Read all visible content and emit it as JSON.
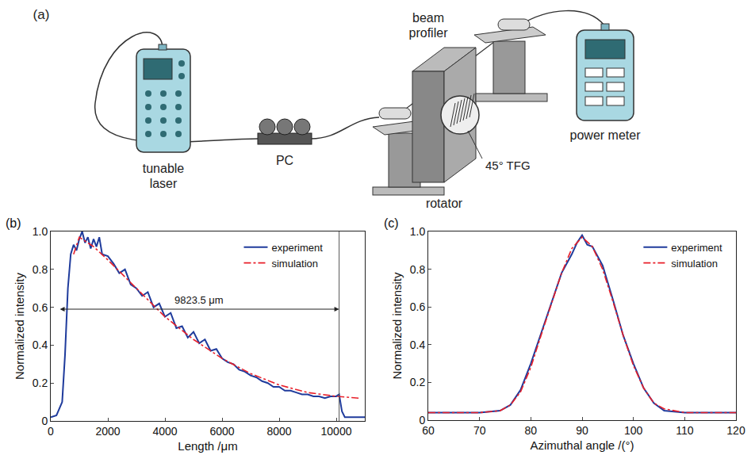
{
  "diagram": {
    "label": "(a)",
    "components": [
      {
        "label": "tunable laser"
      },
      {
        "label": "PC"
      },
      {
        "label": "beam profiler"
      },
      {
        "label": "45° TFG"
      },
      {
        "label": "rotator"
      },
      {
        "label": "power meter"
      }
    ]
  },
  "chart_data": [
    {
      "type": "line",
      "label": "(b)",
      "x_label": "Length /μm",
      "y_label": "Normalized intensity",
      "xlim": [
        0,
        11000
      ],
      "xticks": [
        0,
        2000,
        4000,
        6000,
        8000,
        10000
      ],
      "ylim": [
        0,
        1
      ],
      "yticks": [
        0,
        0.2,
        0.4,
        0.6,
        0.8,
        {
          "value": 1,
          "label": "1.0"
        }
      ],
      "grid": false,
      "legend": "upper right",
      "span": {
        "x0": 277,
        "x1": 10100.5,
        "y": 0.59,
        "label": "9823.5 μm"
      },
      "series": [
        {
          "name": "experiment",
          "color": "#1f3b9c",
          "line_style": "solid",
          "x": [
            0,
            200,
            400,
            500,
            600,
            700,
            800,
            900,
            1000,
            1100,
            1200,
            1300,
            1400,
            1500,
            1600,
            1700,
            1800,
            2000,
            2200,
            2400,
            2600,
            2800,
            3000,
            3200,
            3400,
            3600,
            3800,
            4000,
            4200,
            4400,
            4600,
            4800,
            5000,
            5200,
            5400,
            5600,
            5800,
            6000,
            6200,
            6400,
            6600,
            6800,
            7000,
            7200,
            7400,
            7600,
            7800,
            8000,
            8200,
            8400,
            8600,
            8800,
            9000,
            9200,
            9400,
            9600,
            9800,
            10000,
            10100,
            10200,
            10300,
            10500,
            11000
          ],
          "values": [
            0.02,
            0.03,
            0.1,
            0.35,
            0.7,
            0.88,
            0.93,
            0.9,
            0.96,
            1.0,
            0.94,
            0.97,
            0.91,
            0.96,
            0.92,
            0.97,
            0.88,
            0.87,
            0.83,
            0.78,
            0.8,
            0.72,
            0.7,
            0.66,
            0.68,
            0.6,
            0.62,
            0.55,
            0.57,
            0.49,
            0.5,
            0.44,
            0.47,
            0.41,
            0.43,
            0.37,
            0.38,
            0.33,
            0.31,
            0.3,
            0.27,
            0.26,
            0.24,
            0.23,
            0.21,
            0.2,
            0.18,
            0.18,
            0.16,
            0.16,
            0.15,
            0.14,
            0.14,
            0.13,
            0.13,
            0.12,
            0.13,
            0.13,
            0.14,
            0.05,
            0.02,
            0.02,
            0.02
          ]
        },
        {
          "name": "simulation",
          "color": "#e8202a",
          "line_style": "dashdot",
          "x": [
            800,
            1000,
            1500,
            2000,
            3000,
            4000,
            5000,
            6000,
            7000,
            8000,
            9000,
            10000,
            10800
          ],
          "values": [
            0.88,
            0.97,
            0.92,
            0.85,
            0.7,
            0.55,
            0.43,
            0.33,
            0.25,
            0.19,
            0.15,
            0.13,
            0.12
          ]
        }
      ]
    },
    {
      "type": "line",
      "label": "(c)",
      "x_label": "Azimuthal angle /(°)",
      "y_label": "Normalized intensity",
      "xlim": [
        60,
        120
      ],
      "xticks": [
        60,
        70,
        80,
        90,
        100,
        110,
        120
      ],
      "ylim": [
        0,
        1
      ],
      "yticks": [
        0,
        0.2,
        0.4,
        0.6,
        0.8,
        {
          "value": 1,
          "label": "1.0"
        }
      ],
      "grid": false,
      "legend": "upper right",
      "series": [
        {
          "name": "experiment",
          "color": "#1f3b9c",
          "line_style": "solid",
          "x": [
            60,
            65,
            70,
            74,
            76,
            78,
            80,
            82,
            84,
            86,
            88,
            89,
            90,
            91,
            92,
            94,
            96,
            98,
            100,
            102,
            104,
            106,
            110,
            115,
            120
          ],
          "values": [
            0.04,
            0.04,
            0.04,
            0.05,
            0.08,
            0.16,
            0.3,
            0.46,
            0.62,
            0.78,
            0.88,
            0.94,
            0.98,
            0.93,
            0.92,
            0.82,
            0.64,
            0.45,
            0.3,
            0.17,
            0.09,
            0.05,
            0.04,
            0.04,
            0.04
          ]
        },
        {
          "name": "simulation",
          "color": "#e8202a",
          "line_style": "dashdot",
          "x": [
            60,
            70,
            74,
            76,
            78,
            80,
            82,
            84,
            86,
            88,
            90,
            92,
            94,
            96,
            98,
            100,
            102,
            104,
            106,
            110,
            120
          ],
          "values": [
            0.04,
            0.04,
            0.05,
            0.08,
            0.15,
            0.28,
            0.45,
            0.62,
            0.78,
            0.91,
            0.97,
            0.92,
            0.8,
            0.63,
            0.45,
            0.29,
            0.17,
            0.09,
            0.06,
            0.04,
            0.04
          ]
        }
      ]
    }
  ]
}
